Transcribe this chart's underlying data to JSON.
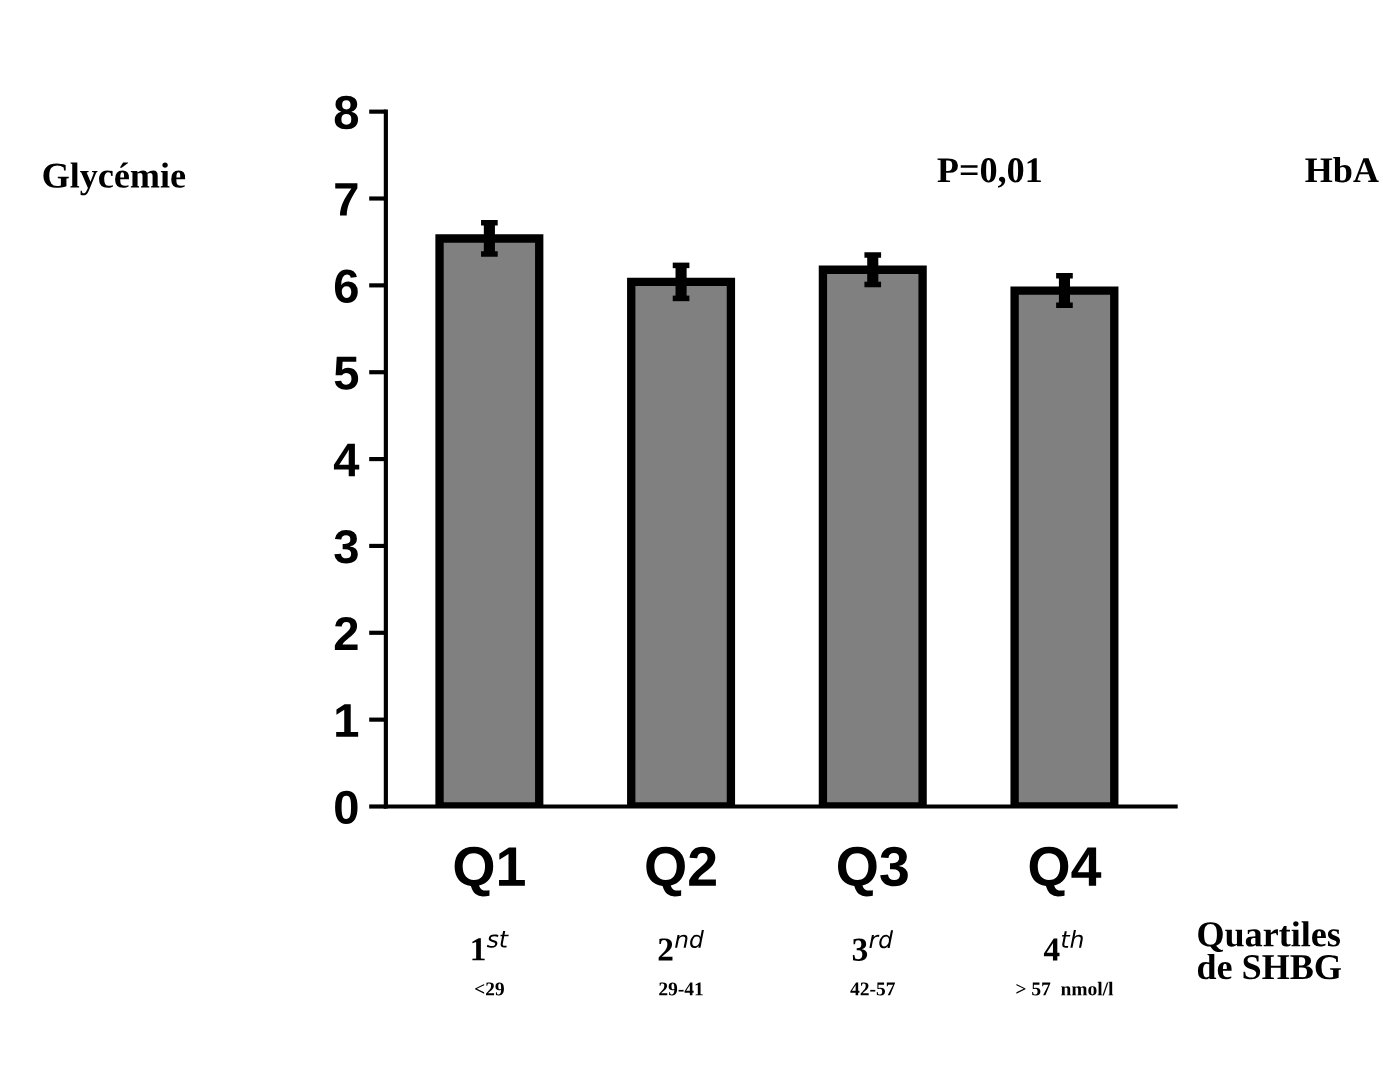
{
  "chart_data": {
    "type": "bar",
    "categories": [
      "Q1",
      "Q2",
      "Q3",
      "Q4"
    ],
    "values": [
      6.54,
      6.04,
      6.18,
      5.94
    ],
    "errors": [
      0.18,
      0.19,
      0.17,
      0.17
    ],
    "color": "#808080",
    "ylabel": "Glycémie",
    "xlabel": "Quartiles\nde SHBG",
    "ylim": [
      0,
      8
    ],
    "yticks": [
      0,
      1,
      2,
      3,
      4,
      5,
      6,
      7,
      8
    ],
    "grid": false,
    "annotations": [
      "P=0,01",
      "HbA",
      "1$^{st}$",
      "2$^{nd}$",
      "3$^{rd}$",
      "4$^{th}$",
      "<29",
      "29-41",
      "42-57",
      "> 57  nmol/l"
    ]
  }
}
